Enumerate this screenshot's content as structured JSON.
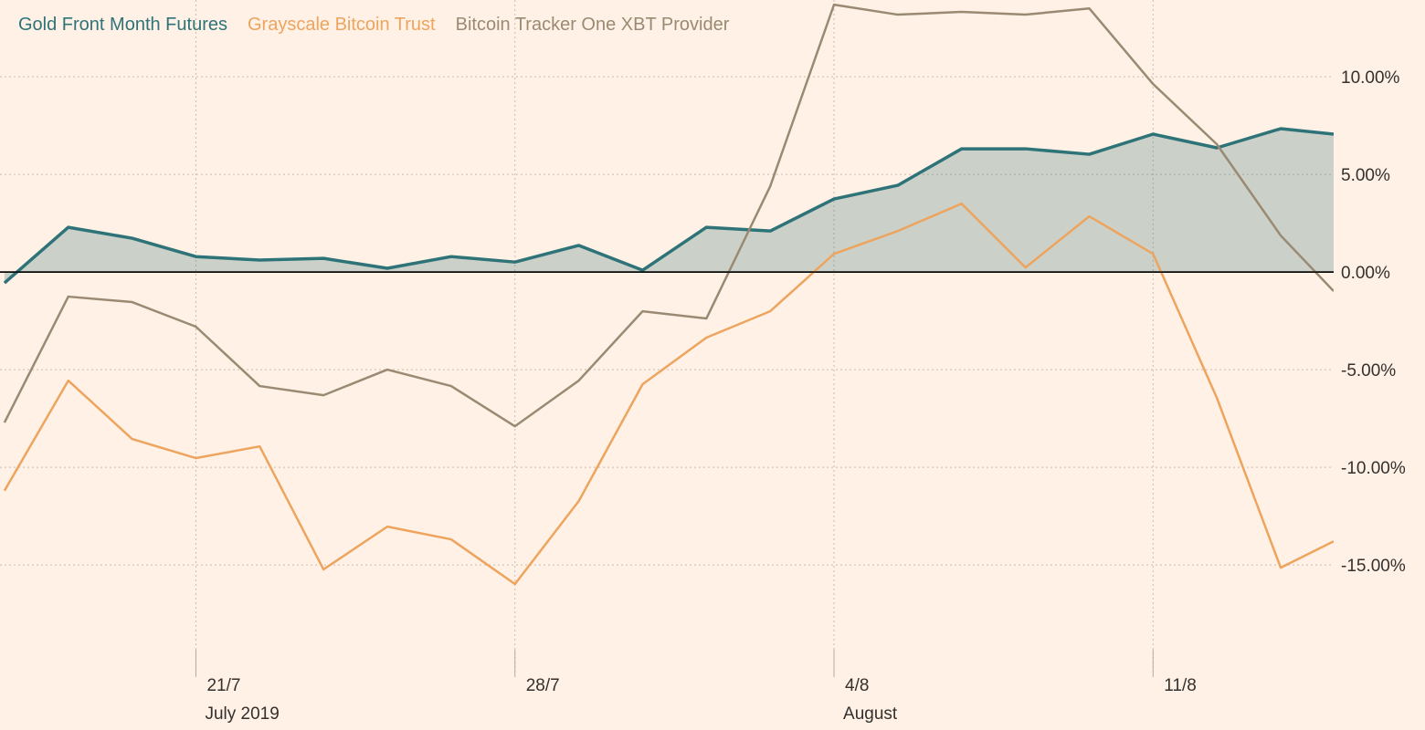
{
  "chart_data": {
    "type": "line",
    "x": [
      0,
      1,
      2,
      3,
      4,
      5,
      6,
      7,
      8,
      9,
      10,
      11,
      12,
      13,
      14,
      15,
      16,
      17,
      18,
      19,
      20,
      20.83
    ],
    "xlim": [
      -0.07,
      20.83
    ],
    "xticks": [
      {
        "value": 3,
        "label": "21/7",
        "sublabel": "July 2019"
      },
      {
        "value": 8,
        "label": "28/7"
      },
      {
        "value": 13,
        "label": "4/8",
        "sublabel": "August"
      },
      {
        "value": 18,
        "label": "11/8"
      }
    ],
    "ylim": [
      -20.65,
      13.93
    ],
    "yticks": [
      {
        "value": 10,
        "label": "10.00%"
      },
      {
        "value": 5,
        "label": "5.00%"
      },
      {
        "value": 0,
        "label": "0.00%"
      },
      {
        "value": -5,
        "label": "-5.00%"
      },
      {
        "value": -10,
        "label": "-10.00%"
      },
      {
        "value": -15,
        "label": "-15.00%"
      }
    ],
    "grid": true,
    "legend": "top-left",
    "series": [
      {
        "name": "Gold Front Month Futures",
        "color": "#2e7378",
        "area": true,
        "values": [
          -0.56,
          2.29,
          1.73,
          0.79,
          0.61,
          0.7,
          0.19,
          0.79,
          0.51,
          1.36,
          0.09,
          2.29,
          2.1,
          3.74,
          4.44,
          6.31,
          6.31,
          6.03,
          7.06,
          6.36,
          7.34,
          7.06
        ]
      },
      {
        "name": "Grayscale Bitcoin Trust",
        "color": "#eda45e",
        "values": [
          -11.2,
          -5.56,
          -8.55,
          -9.53,
          -8.93,
          -15.23,
          -13.04,
          -13.69,
          -15.98,
          -11.73,
          -5.75,
          -3.36,
          -2.01,
          0.93,
          2.1,
          3.5,
          0.23,
          2.85,
          0.93,
          -6.45,
          -15.14,
          -13.79
        ]
      },
      {
        "name": "Bitcoin Tracker One XBT Provider",
        "color": "#9a8a73",
        "values": [
          -7.71,
          -1.26,
          -1.54,
          -2.8,
          -5.84,
          -6.31,
          -5.0,
          -5.84,
          -7.9,
          -5.56,
          -2.01,
          -2.38,
          4.39,
          13.69,
          13.18,
          13.32,
          13.18,
          13.5,
          9.63,
          6.54,
          1.87,
          -0.98
        ]
      }
    ]
  }
}
